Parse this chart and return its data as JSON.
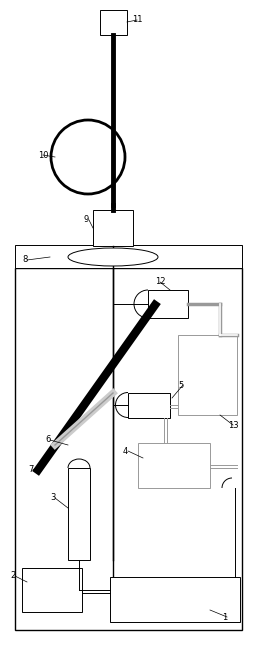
{
  "black": "#000000",
  "gray": "#999999",
  "lgray": "#cccccc",
  "fig_width": 2.54,
  "fig_height": 6.47,
  "dpi": 100
}
